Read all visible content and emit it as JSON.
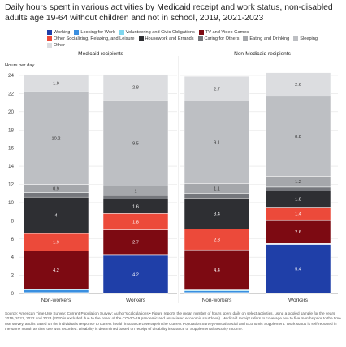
{
  "title": "Daily hours spent in various activities by Medicaid receipt and work status, non-disabled adults age 19-64 without children and not in school, 2019, 2021-2023",
  "ylabel": "Hours per day",
  "source": "Source: American Time Use Survey; Current Population Survey; Author's calculations • Figure reports the mean number of hours spent daily on select activities, using a pooled sample for the years 2019, 2021, 2022 and 2023 (2020 is excluded due to the onset of the COVID-19 pandemic and associated economic shutdown). Medicaid receipt refers to coverage two to five months prior to the time use survey, and is based on the individual's response to current health insurance coverage in the Current Population Survey Annual Social and Economic Supplement. Work status is self-reported in the same month as time use was recorded. Disability is determined based on receipt of disability insurance or Supplemental Security Income.",
  "colors": {
    "Working": "#1f3fa8",
    "Looking for Work": "#3a8fe0",
    "Volunteering and Civic Obligations": "#7fd6ee",
    "TV and Video Games": "#7d0a12",
    "Other Socializing, Relaxing, and Leisure": "#ec4a3a",
    "Housework and Errands": "#2e2f33",
    "Caring for Others": "#75777c",
    "Eating and Drinking": "#a5a7ab",
    "Sleeping": "#bdbfc3",
    "Other": "#dcdde0"
  },
  "chart_data": {
    "type": "bar",
    "stacked": true,
    "ylim": [
      0,
      24
    ],
    "yticks": [
      0,
      2,
      4,
      6,
      8,
      10,
      12,
      14,
      16,
      18,
      20,
      22,
      24
    ],
    "legend": [
      "Working",
      "Looking for Work",
      "Volunteering and Civic Obligations",
      "TV and Video Games",
      "Other Socializing, Relaxing, and Leisure",
      "Housework and Errands",
      "Caring for Others",
      "Eating and Drinking",
      "Sleeping",
      "Other"
    ],
    "panels": [
      {
        "title": "Medicaid recipients",
        "bars": [
          {
            "category": "Non-workers",
            "segments": [
              {
                "series": "Working",
                "value": 0.1,
                "label": ""
              },
              {
                "series": "Looking for Work",
                "value": 0.3,
                "label": ""
              },
              {
                "series": "Volunteering and Civic Obligations",
                "value": 0.1,
                "label": ""
              },
              {
                "series": "TV and Video Games",
                "value": 4.2,
                "label": "4.2"
              },
              {
                "series": "Other Socializing, Relaxing, and Leisure",
                "value": 1.9,
                "label": "1.9"
              },
              {
                "series": "Housework and Errands",
                "value": 4,
                "label": "4"
              },
              {
                "series": "Caring for Others",
                "value": 0.5,
                "label": ""
              },
              {
                "series": "Eating and Drinking",
                "value": 0.9,
                "label": "0.9"
              },
              {
                "series": "Sleeping",
                "value": 10.2,
                "label": "10.2"
              },
              {
                "series": "Other",
                "value": 1.9,
                "label": "1.9"
              }
            ]
          },
          {
            "category": "Workers",
            "segments": [
              {
                "series": "Working",
                "value": 4.2,
                "label": "4.2"
              },
              {
                "series": "Looking for Work",
                "value": 0.05,
                "label": ""
              },
              {
                "series": "Volunteering and Civic Obligations",
                "value": 0.05,
                "label": ""
              },
              {
                "series": "TV and Video Games",
                "value": 2.7,
                "label": "2.7"
              },
              {
                "series": "Other Socializing, Relaxing, and Leisure",
                "value": 1.8,
                "label": "1.8"
              },
              {
                "series": "Housework and Errands",
                "value": 1.6,
                "label": "1.6"
              },
              {
                "series": "Caring for Others",
                "value": 0.4,
                "label": ""
              },
              {
                "series": "Eating and Drinking",
                "value": 1,
                "label": "1"
              },
              {
                "series": "Sleeping",
                "value": 9.5,
                "label": "9.5"
              },
              {
                "series": "Other",
                "value": 2.8,
                "label": "2.8"
              }
            ]
          }
        ]
      },
      {
        "title": "Non-Medicaid recipients",
        "bars": [
          {
            "category": "Non-workers",
            "segments": [
              {
                "series": "Working",
                "value": 0.1,
                "label": ""
              },
              {
                "series": "Looking for Work",
                "value": 0.2,
                "label": ""
              },
              {
                "series": "Volunteering and Civic Obligations",
                "value": 0.1,
                "label": ""
              },
              {
                "series": "TV and Video Games",
                "value": 4.4,
                "label": "4.4"
              },
              {
                "series": "Other Socializing, Relaxing, and Leisure",
                "value": 2.3,
                "label": "2.3"
              },
              {
                "series": "Housework and Errands",
                "value": 3.4,
                "label": "3.4"
              },
              {
                "series": "Caring for Others",
                "value": 0.5,
                "label": ""
              },
              {
                "series": "Eating and Drinking",
                "value": 1.1,
                "label": "1.1"
              },
              {
                "series": "Sleeping",
                "value": 9.1,
                "label": "9.1"
              },
              {
                "series": "Other",
                "value": 2.7,
                "label": "2.7"
              }
            ]
          },
          {
            "category": "Workers",
            "segments": [
              {
                "series": "Working",
                "value": 5.4,
                "label": "5.4"
              },
              {
                "series": "Looking for Work",
                "value": 0.05,
                "label": ""
              },
              {
                "series": "Volunteering and Civic Obligations",
                "value": 0.05,
                "label": ""
              },
              {
                "series": "TV and Video Games",
                "value": 2.6,
                "label": "2.6"
              },
              {
                "series": "Other Socializing, Relaxing, and Leisure",
                "value": 1.4,
                "label": "1.4"
              },
              {
                "series": "Housework and Errands",
                "value": 1.8,
                "label": "1.8"
              },
              {
                "series": "Caring for Others",
                "value": 0.4,
                "label": ""
              },
              {
                "series": "Eating and Drinking",
                "value": 1.2,
                "label": "1.2"
              },
              {
                "series": "Sleeping",
                "value": 8.8,
                "label": "8.8"
              },
              {
                "series": "Other",
                "value": 2.6,
                "label": "2.6"
              }
            ]
          }
        ]
      }
    ]
  }
}
